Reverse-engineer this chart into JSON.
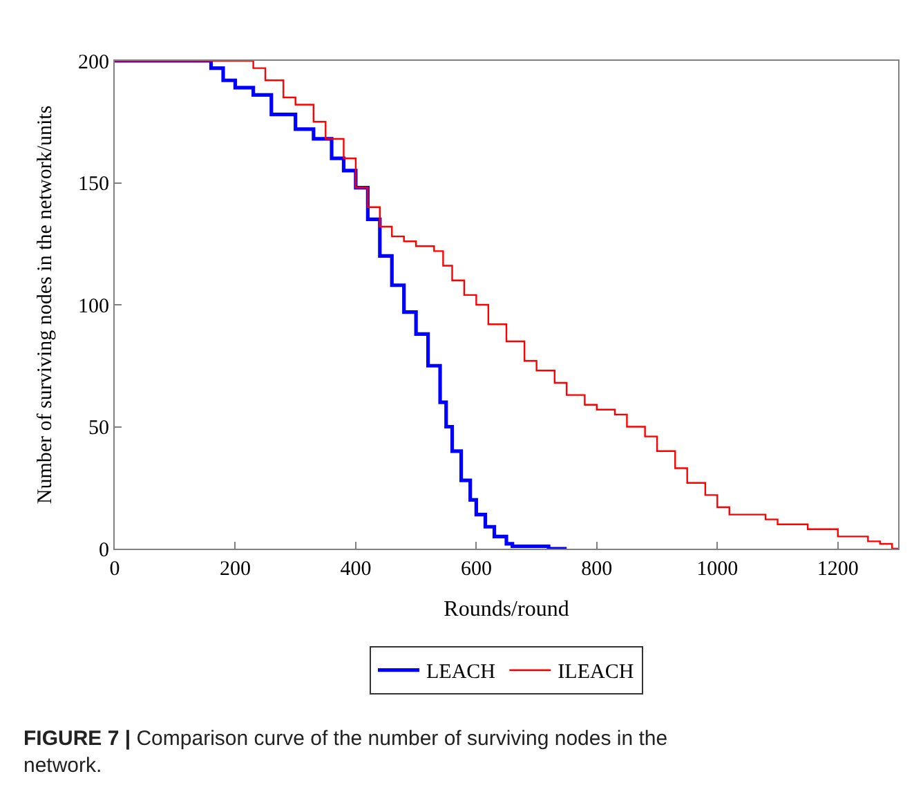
{
  "chart_data": {
    "type": "step",
    "xlabel": "Rounds/round",
    "ylabel": "Number of surviving nodes in the network/units",
    "annotations": [
      "FIGURE 7 | Comparison curve of the number of surviving nodes in the network."
    ],
    "xlim": [
      0,
      1300
    ],
    "xticks": [
      0,
      200,
      400,
      600,
      800,
      1000,
      1200
    ],
    "ylim": [
      0,
      200
    ],
    "yticks": [
      0,
      50,
      100,
      150,
      200
    ],
    "legend": "bottom",
    "series": [
      {
        "name": "LEACH",
        "color": "#0000ff",
        "x": [
          0,
          140,
          160,
          180,
          200,
          230,
          260,
          300,
          330,
          360,
          380,
          400,
          420,
          440,
          460,
          480,
          500,
          520,
          540,
          550,
          560,
          575,
          590,
          600,
          615,
          630,
          650,
          660,
          700,
          720,
          750
        ],
        "values": [
          200,
          200,
          197,
          192,
          189,
          186,
          178,
          172,
          168,
          160,
          155,
          148,
          135,
          120,
          108,
          97,
          88,
          75,
          60,
          50,
          40,
          28,
          20,
          14,
          9,
          5,
          2,
          1,
          1,
          0,
          0
        ]
      },
      {
        "name": "ILEACH",
        "color": "#ff0000",
        "x": [
          0,
          200,
          230,
          250,
          280,
          300,
          330,
          350,
          380,
          400,
          420,
          440,
          460,
          480,
          500,
          530,
          545,
          560,
          580,
          600,
          620,
          650,
          680,
          700,
          730,
          750,
          780,
          800,
          830,
          850,
          880,
          900,
          930,
          950,
          980,
          1000,
          1020,
          1060,
          1080,
          1100,
          1150,
          1200,
          1250,
          1270,
          1290,
          1300
        ],
        "values": [
          200,
          200,
          197,
          192,
          185,
          182,
          175,
          168,
          160,
          148,
          140,
          132,
          128,
          126,
          124,
          122,
          116,
          110,
          104,
          100,
          92,
          85,
          77,
          73,
          68,
          63,
          59,
          57,
          55,
          50,
          46,
          40,
          33,
          27,
          22,
          17,
          14,
          14,
          12,
          10,
          8,
          5,
          3,
          2,
          0,
          0
        ]
      }
    ]
  }
}
